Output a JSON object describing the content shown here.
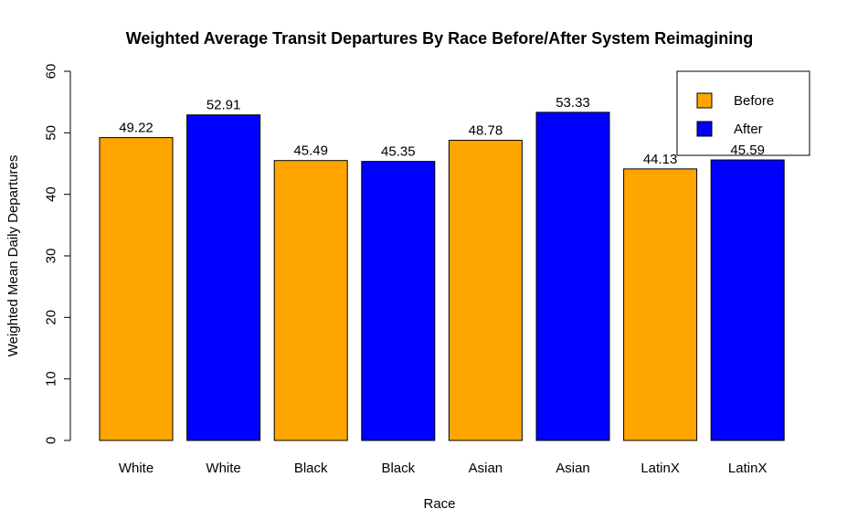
{
  "chart_data": {
    "type": "bar",
    "title": "Weighted Average Transit Departures By Race Before/After System Reimagining",
    "xlabel": "Race",
    "ylabel": "Weighted Mean Daily Departures",
    "ylim": [
      0,
      60
    ],
    "yticks": [
      0,
      10,
      20,
      30,
      40,
      50,
      60
    ],
    "categories": [
      "White",
      "White",
      "Black",
      "Black",
      "Asian",
      "Asian",
      "LatinX",
      "LatinX"
    ],
    "values": [
      49.22,
      52.91,
      45.49,
      45.35,
      48.78,
      53.33,
      44.13,
      45.59
    ],
    "value_labels": [
      "49.22",
      "52.91",
      "45.49",
      "45.35",
      "48.78",
      "53.33",
      "44.13",
      "45.59"
    ],
    "bar_groups": [
      "Before",
      "After",
      "Before",
      "After",
      "Before",
      "After",
      "Before",
      "After"
    ],
    "grid": false,
    "legend": {
      "placement": "top-right",
      "entries": [
        {
          "name": "Before",
          "color": "#FFA500"
        },
        {
          "name": "After",
          "color": "#0000FF"
        }
      ]
    },
    "colors": {
      "Before": "#FFA500",
      "After": "#0000FF"
    }
  }
}
